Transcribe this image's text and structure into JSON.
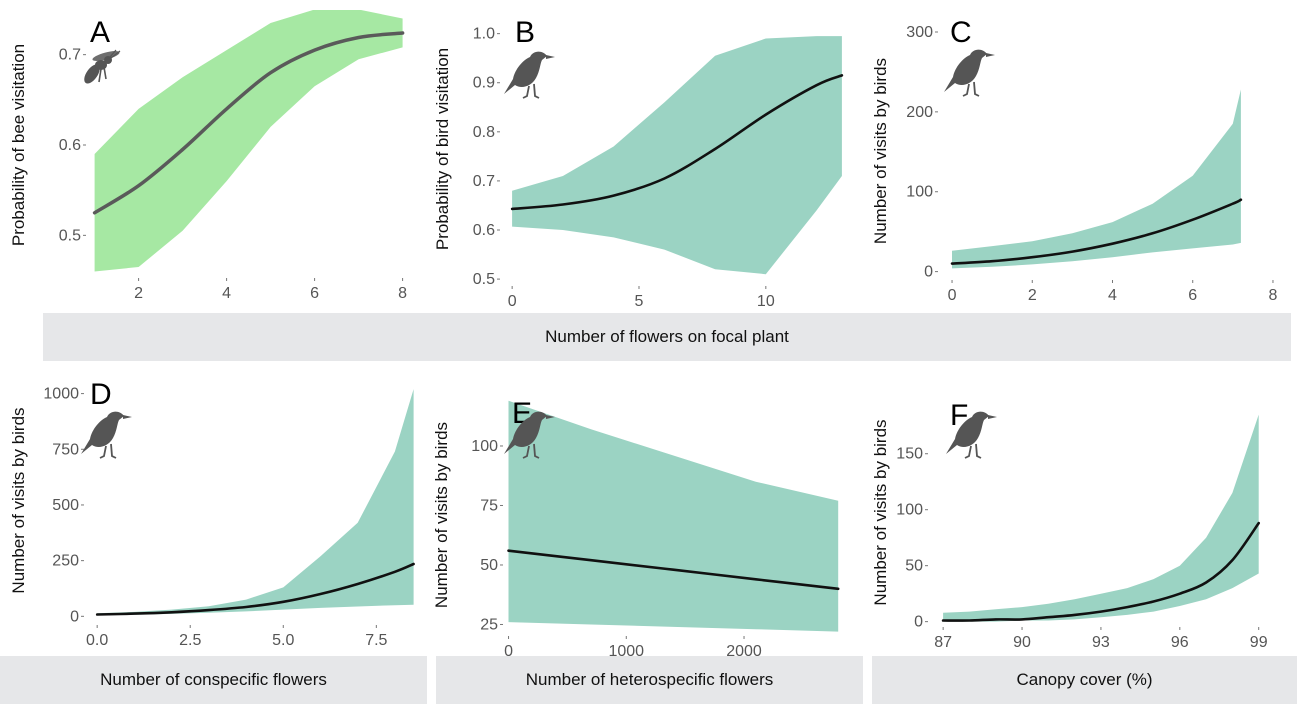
{
  "colors": {
    "bee_band": "#a6e8a3",
    "bird_band": "#9bd3c3",
    "bee_line": "#5a5a5a",
    "bird_line": "#111111",
    "icon": "#555555",
    "strip": "#e6e7e9"
  },
  "strips": {
    "top": "Number of flowers on focal plant",
    "d": "Number of conspecific flowers",
    "e": "Number of heterospecific flowers",
    "f": "Canopy cover (%)"
  },
  "chart_data": [
    {
      "panel": "A",
      "type": "line",
      "icon": "bee-icon",
      "ylabel": "Probability of bee visitation",
      "xlabel": "",
      "xlim": [
        0.85,
        8.35
      ],
      "ylim": [
        0.455,
        0.745
      ],
      "xticks": [
        2,
        4,
        6,
        8
      ],
      "xtick_labels": [
        "2",
        "4",
        "6",
        "8"
      ],
      "yticks": [
        0.5,
        0.6,
        0.7
      ],
      "ytick_labels": [
        "0.5",
        "0.6",
        "0.7"
      ],
      "x": [
        1,
        2,
        3,
        4,
        5,
        6,
        7,
        8
      ],
      "y": [
        0.525,
        0.555,
        0.595,
        0.64,
        0.68,
        0.705,
        0.719,
        0.724
      ],
      "lower": [
        0.46,
        0.465,
        0.505,
        0.56,
        0.62,
        0.665,
        0.695,
        0.708
      ],
      "upper": [
        0.59,
        0.64,
        0.675,
        0.705,
        0.735,
        0.75,
        0.75,
        0.74
      ]
    },
    {
      "panel": "B",
      "type": "line",
      "icon": "bird-icon",
      "ylabel": "Probability of bird visitation",
      "xlabel": "",
      "xlim": [
        -0.4,
        13.2
      ],
      "ylim": [
        0.49,
        1.04
      ],
      "xticks": [
        0,
        5,
        10
      ],
      "xtick_labels": [
        "0",
        "5",
        "10"
      ],
      "yticks": [
        0.5,
        0.6,
        0.7,
        0.8,
        0.9,
        1.0
      ],
      "ytick_labels": [
        "0.5",
        "0.6",
        "0.7",
        "0.8",
        "0.9",
        "1.0"
      ],
      "x": [
        0,
        2,
        4,
        6,
        8,
        10,
        12,
        13
      ],
      "y": [
        0.643,
        0.652,
        0.67,
        0.705,
        0.765,
        0.835,
        0.895,
        0.915
      ],
      "lower": [
        0.607,
        0.6,
        0.585,
        0.56,
        0.52,
        0.51,
        0.64,
        0.71
      ],
      "upper": [
        0.68,
        0.71,
        0.77,
        0.86,
        0.955,
        0.99,
        0.995,
        0.995
      ]
    },
    {
      "panel": "C",
      "type": "line",
      "icon": "bird-icon",
      "ylabel": "Number of visits by birds",
      "xlabel": "",
      "xlim": [
        -0.3,
        8.3
      ],
      "ylim": [
        -8,
        310
      ],
      "xticks": [
        0,
        2,
        4,
        6,
        8
      ],
      "xtick_labels": [
        "0",
        "2",
        "4",
        "6",
        "8"
      ],
      "yticks": [
        0,
        100,
        200,
        300
      ],
      "ytick_labels": [
        "0",
        "100",
        "200",
        "300"
      ],
      "x": [
        0,
        1,
        2,
        3,
        4,
        5,
        6,
        7,
        7.2
      ],
      "y": [
        10,
        13,
        18,
        25,
        35,
        48,
        65,
        85,
        90
      ],
      "lower": [
        4,
        6,
        9,
        13,
        18,
        24,
        29,
        34,
        36
      ],
      "upper": [
        26,
        32,
        38,
        48,
        62,
        85,
        120,
        185,
        228
      ]
    },
    {
      "panel": "D",
      "type": "line",
      "icon": "bird-icon",
      "ylabel": "Number of visits by birds",
      "xlabel": "Number of conspecific flowers",
      "xlim": [
        -0.3,
        8.7
      ],
      "ylim": [
        -30,
        1070
      ],
      "xticks": [
        0,
        2.5,
        5,
        7.5
      ],
      "xtick_labels": [
        "0.0",
        "2.5",
        "5.0",
        "7.5"
      ],
      "yticks": [
        0,
        250,
        500,
        750,
        1000
      ],
      "ytick_labels": [
        "0",
        "250",
        "500",
        "750",
        "1000"
      ],
      "x": [
        0,
        1,
        2,
        3,
        4,
        5,
        6,
        7,
        8,
        8.5
      ],
      "y": [
        8,
        12,
        18,
        28,
        42,
        65,
        100,
        145,
        200,
        235
      ],
      "lower": [
        5,
        7,
        11,
        16,
        22,
        30,
        38,
        44,
        50,
        52
      ],
      "upper": [
        14,
        20,
        30,
        45,
        75,
        130,
        270,
        420,
        740,
        1020
      ]
    },
    {
      "panel": "E",
      "type": "line",
      "icon": "bird-icon",
      "ylabel": "Number of visits by birds",
      "xlabel": "Number of heterospecific flowers",
      "xlim": [
        -30,
        2900
      ],
      "ylim": [
        21,
        121
      ],
      "xticks": [
        0,
        1000,
        2000
      ],
      "xtick_labels": [
        "0",
        "1000",
        "2000"
      ],
      "yticks": [
        25,
        50,
        75,
        100
      ],
      "ytick_labels": [
        "25",
        "50",
        "75",
        "100"
      ],
      "x": [
        0,
        700,
        1400,
        2100,
        2800
      ],
      "y": [
        56,
        52,
        48,
        44,
        40
      ],
      "lower": [
        26,
        25,
        24,
        23,
        22
      ],
      "upper": [
        119,
        107,
        96,
        85,
        77
      ]
    },
    {
      "panel": "F",
      "type": "line",
      "icon": "bird-icon",
      "ylabel": "Number of visits by birds",
      "xlabel": "Canopy cover (%)",
      "xlim": [
        86.5,
        100
      ],
      "ylim": [
        -3,
        198
      ],
      "xticks": [
        87,
        90,
        93,
        96,
        99
      ],
      "xtick_labels": [
        "87",
        "90",
        "93",
        "96",
        "99"
      ],
      "yticks": [
        0,
        50,
        100,
        150
      ],
      "ytick_labels": [
        "0",
        "50",
        "100",
        "150"
      ],
      "x": [
        87,
        88,
        89,
        90,
        91,
        92,
        93,
        94,
        95,
        96,
        97,
        98,
        99
      ],
      "y": [
        1,
        1,
        2,
        2,
        4,
        6,
        9,
        13,
        18,
        25,
        35,
        55,
        88
      ],
      "lower": [
        0,
        0,
        0,
        1,
        1,
        2,
        4,
        6,
        9,
        14,
        20,
        30,
        43
      ],
      "upper": [
        8,
        9,
        11,
        13,
        16,
        20,
        25,
        30,
        38,
        50,
        75,
        115,
        185
      ]
    }
  ]
}
